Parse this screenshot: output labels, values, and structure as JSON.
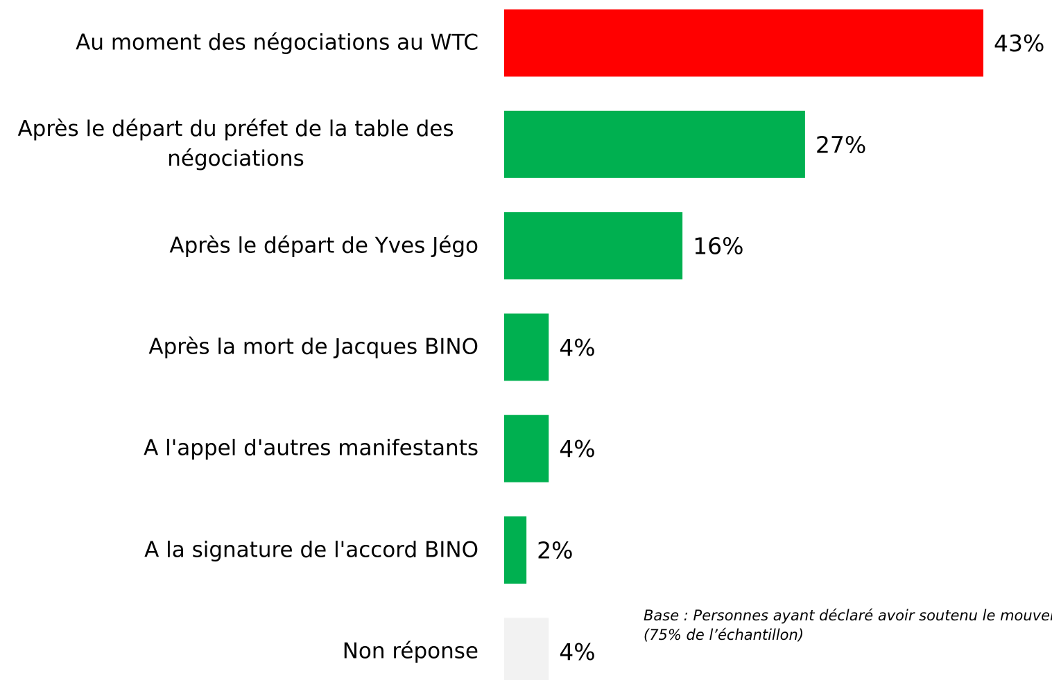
{
  "chart_data": {
    "type": "hbar",
    "categories": [
      "Au moment des négociations au WTC",
      "Après le départ du préfet de la table des\nnégociations",
      "Après le départ de  Yves Jégo",
      "Après la mort de Jacques BINO",
      "A l'appel d'autres manifestants",
      "A la signature de l'accord BINO",
      "Non réponse"
    ],
    "values": [
      43,
      27,
      16,
      4,
      4,
      2,
      4
    ],
    "value_labels": [
      "43%",
      "27%",
      "16%",
      "4%",
      "4%",
      "2%",
      "4%"
    ],
    "colors": [
      "#ff0000",
      "#00b050",
      "#00b050",
      "#00b050",
      "#00b050",
      "#00b050",
      "#f2f2f2"
    ],
    "annotations": [
      "Base : Personnes ayant déclaré avoir soutenu le mouvement",
      "(75% de l’échantillon)"
    ]
  }
}
